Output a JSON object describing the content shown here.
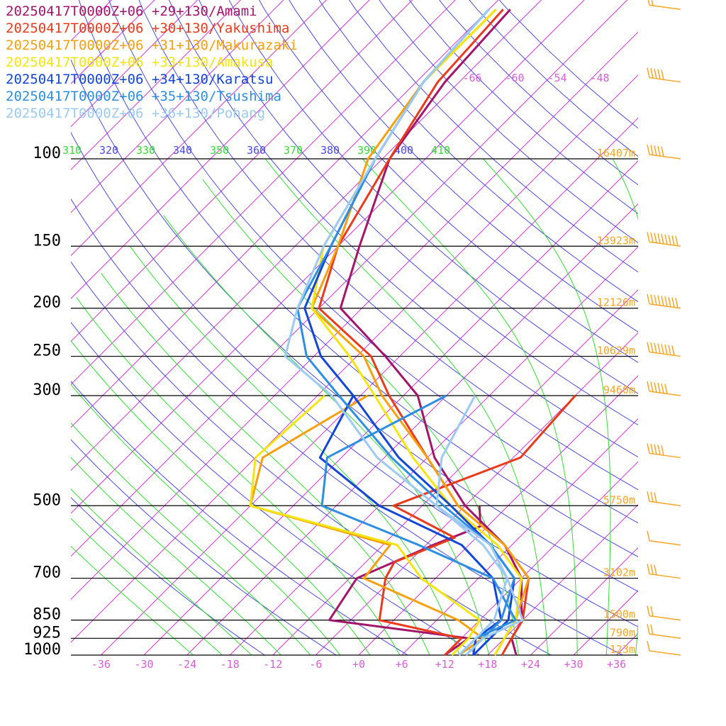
{
  "chart_data": {
    "type": "line",
    "title": "",
    "xlabel": "",
    "ylabel": "",
    "y_scale": "log-pressure (hPa)",
    "x_skew": "skew-T",
    "pressure_levels": [
      100,
      150,
      200,
      250,
      300,
      500,
      700,
      850,
      925,
      1000
    ],
    "pressure_tick_labels": [
      "100",
      "150",
      "200",
      "250",
      "300",
      "500",
      "700",
      "850",
      "925",
      "1000"
    ],
    "temp_ticks": [
      -36,
      -30,
      -24,
      -18,
      -12,
      -6,
      0,
      6,
      12,
      18,
      24,
      30,
      36
    ],
    "temp_tick_labels": [
      "-36",
      "-30",
      "-24",
      "-18",
      "-12",
      "-6",
      "+0",
      "+6",
      "+12",
      "+18",
      "+24",
      "+30",
      "+36"
    ],
    "upper_temp_labels": [
      "-66",
      "-60",
      "-54",
      "-48"
    ],
    "theta_labels": [
      "310",
      "320",
      "330",
      "340",
      "350",
      "360",
      "370",
      "380",
      "390",
      "400",
      "410"
    ],
    "height_labels": [
      {
        "p": 100,
        "label": "16407m"
      },
      {
        "p": 150,
        "label": "13923m"
      },
      {
        "p": 200,
        "label": "12126m"
      },
      {
        "p": 250,
        "label": "10629m"
      },
      {
        "p": 300,
        "label": "9460m"
      },
      {
        "p": 500,
        "label": "5750m"
      },
      {
        "p": 700,
        "label": "3102m"
      },
      {
        "p": 850,
        "label": "1500m"
      },
      {
        "p": 925,
        "label": "790m"
      },
      {
        "p": 1000,
        "label": "123m"
      }
    ],
    "grid": true,
    "legend_position": "top-left",
    "colors": {
      "pressure_line": "#000000",
      "isotherm": "#d433d4",
      "dry_adiabat": "#4a4ae0",
      "moist_adiabat": "#33dd33",
      "tick_temp": "#d45fd4",
      "height_label": "#f5a623",
      "wind_barb": "#f5a623"
    },
    "series": [
      {
        "name": "20250417T0000Z+06 +29+130/Amami",
        "color": "#a3146b",
        "temperature": [
          [
            1000,
            22
          ],
          [
            925,
            19
          ],
          [
            850,
            18
          ],
          [
            800,
            16
          ],
          [
            700,
            12
          ],
          [
            600,
            5
          ],
          [
            500,
            -6
          ],
          [
            400,
            -17
          ],
          [
            300,
            -28
          ],
          [
            250,
            -38
          ],
          [
            200,
            -51
          ],
          [
            150,
            -57
          ],
          [
            100,
            -65
          ],
          [
            70,
            -68
          ],
          [
            50,
            -69
          ]
        ],
        "dewpoint": [
          [
            1000,
            12
          ],
          [
            925,
            13
          ],
          [
            850,
            -9
          ],
          [
            700,
            -11
          ],
          [
            600,
            -5
          ],
          [
            550,
            -1
          ],
          [
            500,
            -4
          ]
        ]
      },
      {
        "name": "20250417T0000Z+06 +30+130/Yakushima",
        "color": "#ea3a1c",
        "temperature": [
          [
            1000,
            20
          ],
          [
            925,
            19
          ],
          [
            850,
            18
          ],
          [
            700,
            13
          ],
          [
            600,
            5
          ],
          [
            500,
            -7
          ],
          [
            400,
            -18
          ],
          [
            300,
            -32
          ],
          [
            250,
            -40
          ],
          [
            200,
            -54
          ],
          [
            150,
            -60
          ],
          [
            100,
            -65
          ],
          [
            70,
            -69
          ],
          [
            50,
            -70
          ]
        ],
        "dewpoint": [
          [
            1000,
            12
          ],
          [
            925,
            12
          ],
          [
            850,
            -2
          ],
          [
            700,
            -7
          ],
          [
            650,
            -8
          ],
          [
            580,
            -3
          ],
          [
            500,
            -16
          ],
          [
            400,
            -5
          ],
          [
            300,
            -6
          ]
        ]
      },
      {
        "name": "20250417T0000Z+06 +31+130/Makurazaki",
        "color": "#f5a00f",
        "temperature": [
          [
            1000,
            19
          ],
          [
            925,
            18
          ],
          [
            850,
            17
          ],
          [
            700,
            13
          ],
          [
            600,
            5
          ],
          [
            500,
            -7
          ],
          [
            400,
            -18
          ],
          [
            300,
            -33
          ],
          [
            250,
            -41
          ],
          [
            200,
            -55
          ],
          [
            150,
            -60
          ],
          [
            100,
            -68
          ],
          [
            70,
            -71
          ],
          [
            50,
            -71
          ]
        ],
        "dewpoint": [
          [
            1000,
            14
          ],
          [
            925,
            15
          ],
          [
            850,
            9
          ],
          [
            700,
            -10
          ],
          [
            600,
            -11
          ],
          [
            500,
            -36
          ],
          [
            400,
            -41
          ],
          [
            300,
            -35
          ]
        ]
      },
      {
        "name": "20250417T0000Z+06 +33+130/Amakusa",
        "color": "#f5e50f",
        "temperature": [
          [
            1000,
            19
          ],
          [
            925,
            18
          ],
          [
            850,
            17
          ],
          [
            700,
            12
          ],
          [
            600,
            4
          ],
          [
            500,
            -8
          ],
          [
            400,
            -20
          ],
          [
            300,
            -34
          ],
          [
            250,
            -43
          ],
          [
            200,
            -55
          ],
          [
            150,
            -62
          ],
          [
            100,
            -67
          ],
          [
            70,
            -71
          ],
          [
            50,
            -71
          ]
        ],
        "dewpoint": [
          [
            1000,
            13
          ],
          [
            925,
            13
          ],
          [
            850,
            12
          ],
          [
            700,
            -2
          ],
          [
            600,
            -10
          ],
          [
            500,
            -36
          ],
          [
            400,
            -42
          ],
          [
            300,
            -41
          ]
        ]
      },
      {
        "name": "20250417T0000Z+06 +34+130/Karatsu",
        "color": "#1446d6",
        "temperature": [
          [
            1000,
            16
          ],
          [
            925,
            16
          ],
          [
            850,
            16
          ],
          [
            700,
            11
          ],
          [
            600,
            3
          ],
          [
            500,
            -8
          ],
          [
            400,
            -22
          ],
          [
            300,
            -37
          ],
          [
            250,
            -47
          ],
          [
            200,
            -56
          ],
          [
            150,
            -61
          ],
          [
            100,
            -67
          ],
          [
            70,
            -71
          ],
          [
            50,
            -72
          ]
        ],
        "dewpoint": [
          [
            1000,
            16
          ],
          [
            925,
            14
          ],
          [
            850,
            15
          ],
          [
            700,
            8
          ],
          [
            600,
            -1
          ],
          [
            500,
            -18
          ],
          [
            400,
            -33
          ],
          [
            300,
            -37
          ]
        ]
      },
      {
        "name": "20250417T0000Z+06 +35+130/Tsushima",
        "color": "#2e8ee0",
        "temperature": [
          [
            1000,
            15
          ],
          [
            925,
            15
          ],
          [
            850,
            15
          ],
          [
            700,
            11
          ],
          [
            600,
            3
          ],
          [
            500,
            -9
          ],
          [
            400,
            -23
          ],
          [
            300,
            -39
          ],
          [
            250,
            -49
          ],
          [
            200,
            -57
          ],
          [
            150,
            -61
          ],
          [
            100,
            -67
          ],
          [
            70,
            -71
          ],
          [
            50,
            -72
          ]
        ],
        "dewpoint": [
          [
            1000,
            14
          ],
          [
            925,
            14
          ],
          [
            850,
            17
          ],
          [
            700,
            8
          ],
          [
            600,
            -7
          ],
          [
            500,
            -26
          ],
          [
            400,
            -32
          ],
          [
            300,
            -24
          ]
        ]
      },
      {
        "name": "20250417T0000Z+06 +36+130/Pohang",
        "color": "#9ccaf2",
        "temperature": [
          [
            1000,
            14
          ],
          [
            925,
            14
          ],
          [
            850,
            14
          ],
          [
            700,
            10
          ],
          [
            600,
            2
          ],
          [
            500,
            -10
          ],
          [
            400,
            -25
          ],
          [
            300,
            -40
          ],
          [
            250,
            -52
          ],
          [
            200,
            -57
          ],
          [
            150,
            -62
          ],
          [
            100,
            -67
          ],
          [
            70,
            -71
          ],
          [
            50,
            -72
          ]
        ],
        "dewpoint": [
          [
            1000,
            15
          ],
          [
            925,
            15
          ],
          [
            850,
            18
          ],
          [
            700,
            10
          ],
          [
            600,
            3
          ],
          [
            500,
            -10
          ],
          [
            400,
            -16
          ],
          [
            300,
            -20
          ]
        ]
      }
    ],
    "wind_barbs": [
      {
        "p": 50,
        "speed_kt": 15
      },
      {
        "p": 70,
        "speed_kt": 50
      },
      {
        "p": 100,
        "speed_kt": 50
      },
      {
        "p": 150,
        "speed_kt": 85
      },
      {
        "p": 200,
        "speed_kt": 90
      },
      {
        "p": 250,
        "speed_kt": 80
      },
      {
        "p": 300,
        "speed_kt": 55
      },
      {
        "p": 400,
        "speed_kt": 45
      },
      {
        "p": 500,
        "speed_kt": 30
      },
      {
        "p": 600,
        "speed_kt": 10
      },
      {
        "p": 700,
        "speed_kt": 25
      },
      {
        "p": 850,
        "speed_kt": 15
      },
      {
        "p": 925,
        "speed_kt": 15
      },
      {
        "p": 1000,
        "speed_kt": 10
      }
    ]
  }
}
